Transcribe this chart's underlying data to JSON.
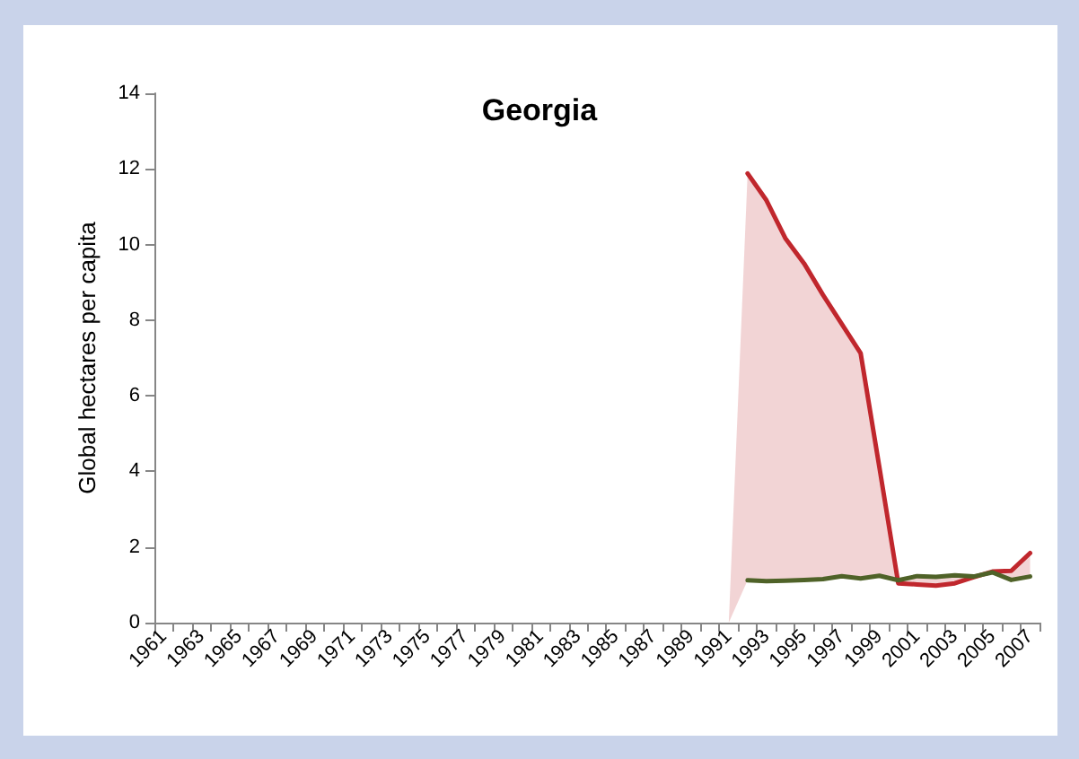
{
  "chart_data": {
    "type": "line",
    "title": "Georgia",
    "ylabel": "Global hectares per capita",
    "categories": [
      "1961",
      null,
      "1963",
      null,
      "1965",
      null,
      "1967",
      null,
      "1969",
      null,
      "1971",
      null,
      "1973",
      null,
      "1975",
      null,
      "1977",
      null,
      "1979",
      null,
      "1981",
      null,
      "1983",
      null,
      "1985",
      null,
      "1987",
      null,
      "1989",
      null,
      "1991",
      null,
      "1993",
      null,
      "1995",
      null,
      "1997",
      null,
      "1999",
      null,
      "2001",
      null,
      "2003",
      null,
      "2005",
      null,
      "2007"
    ],
    "series": [
      {
        "color": "#c0272d",
        "values": [
          null,
          null,
          null,
          null,
          null,
          null,
          null,
          null,
          null,
          null,
          null,
          null,
          null,
          null,
          null,
          null,
          null,
          null,
          null,
          null,
          null,
          null,
          null,
          null,
          null,
          null,
          null,
          null,
          null,
          null,
          null,
          11.88,
          11.17,
          10.17,
          9.5,
          8.67,
          7.9,
          7.13,
          4.1,
          1.04,
          1.01,
          0.98,
          1.04,
          1.2,
          1.35,
          1.37,
          1.84
        ],
        "lower": [
          null,
          null,
          null,
          null,
          null,
          null,
          null,
          null,
          null,
          null,
          null,
          null,
          null,
          null,
          null,
          null,
          null,
          null,
          null,
          null,
          null,
          null,
          null,
          null,
          null,
          null,
          null,
          null,
          null,
          null,
          0,
          1.12,
          1.1,
          1.11,
          1.13,
          1.15,
          1.23,
          1.17,
          1.24,
          1.12,
          1.23,
          1.21,
          1.25,
          1.22,
          1.33,
          1.13,
          1.22
        ],
        "upper": [
          null,
          null,
          null,
          null,
          null,
          null,
          null,
          null,
          null,
          null,
          null,
          null,
          null,
          null,
          null,
          null,
          null,
          null,
          null,
          null,
          null,
          null,
          null,
          null,
          null,
          null,
          null,
          null,
          null,
          null,
          0,
          11.88,
          11.17,
          10.17,
          9.5,
          8.67,
          7.9,
          7.13,
          4.1,
          1.04,
          1.01,
          0.98,
          1.04,
          1.2,
          1.35,
          1.37,
          1.84
        ]
      },
      {
        "color": "#4f6228",
        "values": [
          null,
          null,
          null,
          null,
          null,
          null,
          null,
          null,
          null,
          null,
          null,
          null,
          null,
          null,
          null,
          null,
          null,
          null,
          null,
          null,
          null,
          null,
          null,
          null,
          null,
          null,
          null,
          null,
          null,
          null,
          null,
          1.12,
          1.1,
          1.11,
          1.13,
          1.15,
          1.23,
          1.17,
          1.24,
          1.12,
          1.23,
          1.21,
          1.25,
          1.22,
          1.33,
          1.13,
          1.22
        ]
      }
    ],
    "ylim": [
      0,
      14
    ],
    "yticks": [
      0,
      2,
      4,
      6,
      8,
      10,
      12,
      14
    ],
    "grid": false,
    "marker": "none",
    "line_style": "solid"
  }
}
